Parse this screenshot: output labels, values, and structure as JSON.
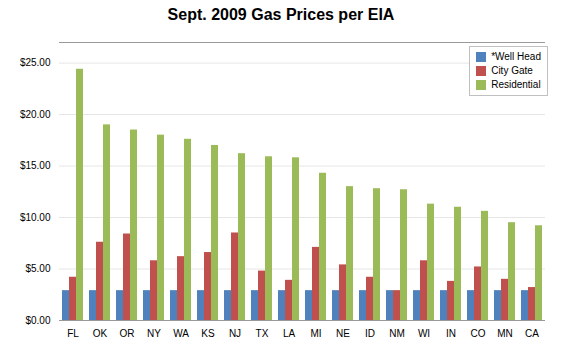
{
  "chart_data": {
    "type": "bar",
    "title": "Sept. 2009 Gas Prices per EIA",
    "categories": [
      "FL",
      "OK",
      "OR",
      "NY",
      "WA",
      "KS",
      "NJ",
      "TX",
      "LA",
      "MI",
      "NE",
      "ID",
      "NM",
      "WI",
      "IN",
      "CO",
      "MN",
      "CA"
    ],
    "series": [
      {
        "name": "*Well Head",
        "color": "#4F81BD",
        "values": [
          2.9,
          2.9,
          2.9,
          2.9,
          2.9,
          2.9,
          2.9,
          2.9,
          2.9,
          2.9,
          2.9,
          2.9,
          2.9,
          2.9,
          2.9,
          2.9,
          2.9,
          2.9
        ]
      },
      {
        "name": "City Gate",
        "color": "#C0504D",
        "values": [
          4.2,
          7.6,
          8.4,
          5.8,
          6.2,
          6.6,
          8.5,
          4.8,
          3.9,
          7.1,
          5.4,
          4.2,
          2.9,
          5.8,
          3.8,
          5.2,
          4.0,
          3.2
        ]
      },
      {
        "name": "Residential",
        "color": "#9BBB59",
        "values": [
          24.4,
          19.0,
          18.5,
          18.0,
          17.6,
          17.0,
          16.2,
          15.9,
          15.8,
          14.3,
          13.0,
          12.8,
          12.7,
          11.3,
          11.0,
          10.6,
          9.5,
          9.2
        ]
      }
    ],
    "ylim": [
      0,
      27
    ],
    "yticks": [
      {
        "value": 0,
        "label": "$0.00"
      },
      {
        "value": 5,
        "label": "$5.00"
      },
      {
        "value": 10,
        "label": "$10.00"
      },
      {
        "value": 15,
        "label": "$15.00"
      },
      {
        "value": 20,
        "label": "$20.00"
      },
      {
        "value": 25,
        "label": "$25.00"
      }
    ],
    "grid": true,
    "legend": "upper right"
  }
}
